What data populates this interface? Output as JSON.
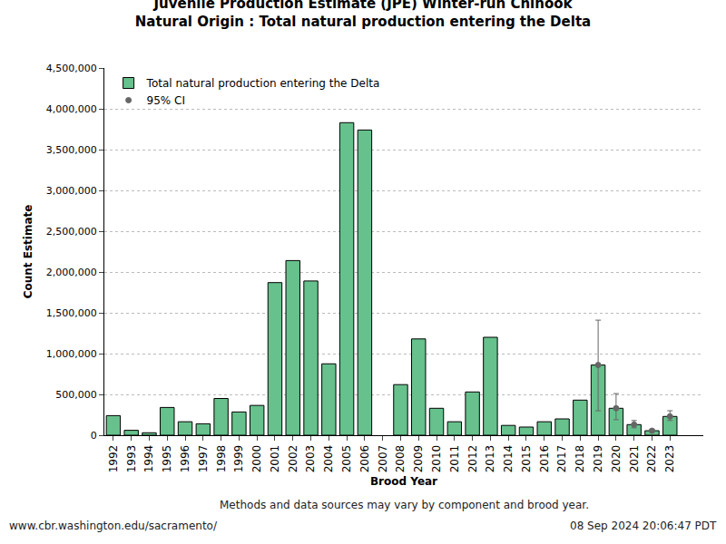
{
  "chart_data": {
    "type": "bar",
    "title": "Juvenile Production Estimate (JPE) Winter-run Chinook",
    "subtitle": "Natural Origin : Total natural production entering the Delta",
    "x_label": "Brood Year",
    "y_label": "Count Estimate",
    "annotations": [
      "Methods and data sources may vary by component and brood year.",
      "www.cbr.washington.edu/sacramento/",
      "08 Sep 2024 20:06:47 PDT"
    ],
    "categories": [
      "1992",
      "1993",
      "1994",
      "1995",
      "1996",
      "1997",
      "1998",
      "1999",
      "2000",
      "2001",
      "2002",
      "2003",
      "2004",
      "2005",
      "2006",
      "2007",
      "2008",
      "2009",
      "2010",
      "2011",
      "2012",
      "2013",
      "2014",
      "2015",
      "2016",
      "2017",
      "2018",
      "2019",
      "2020",
      "2021",
      "2022",
      "2023"
    ],
    "series": [
      {
        "name": "Total natural production entering the Delta",
        "color": "#66c18c",
        "values": [
          240000,
          60000,
          30000,
          340000,
          165000,
          140000,
          450000,
          285000,
          365000,
          1870000,
          2140000,
          1890000,
          875000,
          3830000,
          3740000,
          null,
          620000,
          1180000,
          330000,
          165000,
          530000,
          1200000,
          120000,
          100000,
          165000,
          200000,
          430000,
          860000,
          330000,
          130000,
          55000,
          230000
        ]
      },
      {
        "name": "95% CI",
        "type": "errorbar",
        "color": "#666666",
        "marker": "open-circle",
        "ci_low": [
          null,
          null,
          null,
          null,
          null,
          null,
          null,
          null,
          null,
          null,
          null,
          null,
          null,
          null,
          null,
          null,
          null,
          null,
          null,
          null,
          null,
          null,
          null,
          null,
          null,
          null,
          null,
          300000,
          190000,
          90000,
          45000,
          180000
        ],
        "ci_high": [
          null,
          null,
          null,
          null,
          null,
          null,
          null,
          null,
          null,
          null,
          null,
          null,
          null,
          null,
          null,
          null,
          null,
          null,
          null,
          null,
          null,
          null,
          null,
          null,
          null,
          null,
          null,
          1410000,
          510000,
          180000,
          70000,
          300000
        ]
      }
    ],
    "ylim": [
      0,
      4500000
    ],
    "yticks": [
      {
        "value": 0,
        "label": "0"
      },
      {
        "value": 500000,
        "label": "500,000"
      },
      {
        "value": 1000000,
        "label": "1,000,000"
      },
      {
        "value": 1500000,
        "label": "1,500,000"
      },
      {
        "value": 2000000,
        "label": "2,000,000"
      },
      {
        "value": 2500000,
        "label": "2,500,000"
      },
      {
        "value": 3000000,
        "label": "3,000,000"
      },
      {
        "value": 3500000,
        "label": "3,500,000"
      },
      {
        "value": 4000000,
        "label": "4,000,000"
      },
      {
        "value": 4500000,
        "label": "4,500,000"
      }
    ],
    "grid": true,
    "legend": "upper left"
  }
}
